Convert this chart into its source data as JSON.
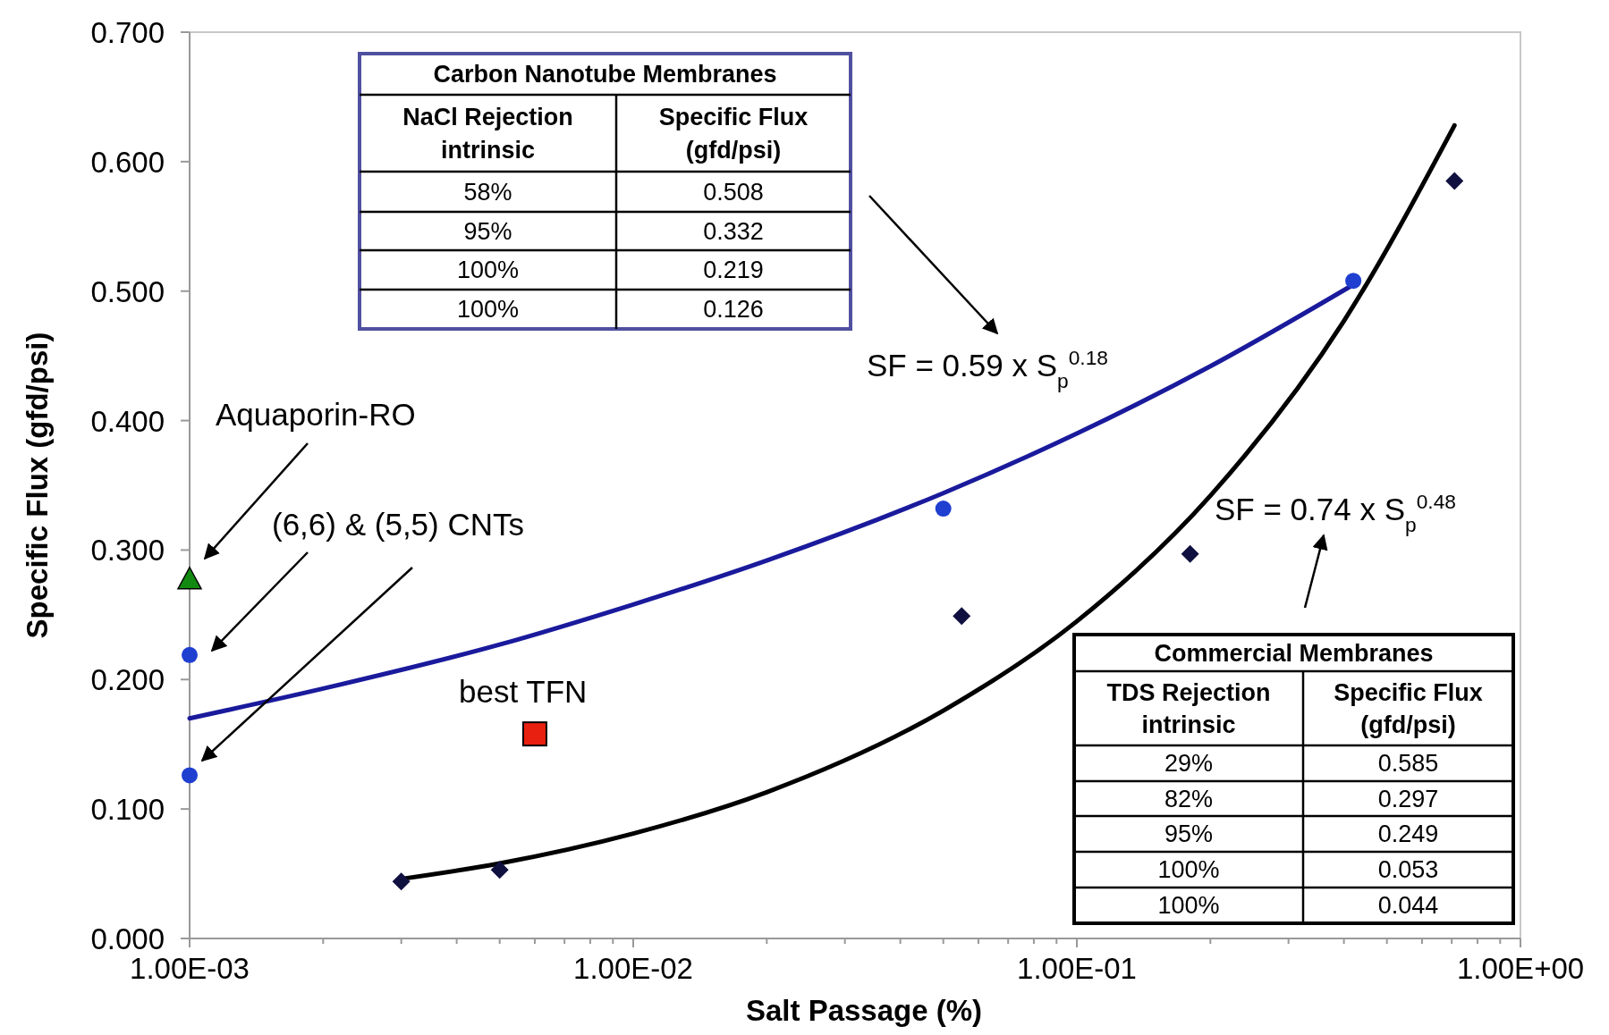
{
  "chart_data": {
    "type": "scatter",
    "xlabel": "Salt Passage (%)",
    "ylabel": "Specific Flux (gfd/psi)",
    "log": "x",
    "grid": false,
    "xlim": [
      0.001,
      1
    ],
    "ylim": [
      0,
      0.7
    ],
    "xticks": [
      {
        "value": 0.001,
        "label": "1.00E-03"
      },
      {
        "value": 0.002,
        "label": null
      },
      {
        "value": 0.003,
        "label": null
      },
      {
        "value": 0.004,
        "label": null
      },
      {
        "value": 0.005,
        "label": null
      },
      {
        "value": 0.006,
        "label": null
      },
      {
        "value": 0.007,
        "label": null
      },
      {
        "value": 0.008,
        "label": null
      },
      {
        "value": 0.009,
        "label": null
      },
      {
        "value": 0.01,
        "label": "1.00E-02"
      },
      {
        "value": 0.02,
        "label": null
      },
      {
        "value": 0.03,
        "label": null
      },
      {
        "value": 0.04,
        "label": null
      },
      {
        "value": 0.05,
        "label": null
      },
      {
        "value": 0.06,
        "label": null
      },
      {
        "value": 0.07,
        "label": null
      },
      {
        "value": 0.08,
        "label": null
      },
      {
        "value": 0.09,
        "label": null
      },
      {
        "value": 0.1,
        "label": "1.00E-01"
      },
      {
        "value": 0.2,
        "label": null
      },
      {
        "value": 0.3,
        "label": null
      },
      {
        "value": 0.4,
        "label": null
      },
      {
        "value": 0.5,
        "label": null
      },
      {
        "value": 0.6,
        "label": null
      },
      {
        "value": 0.7,
        "label": null
      },
      {
        "value": 0.8,
        "label": null
      },
      {
        "value": 0.9,
        "label": null
      },
      {
        "value": 1,
        "label": "1.00E+00"
      }
    ],
    "yticks": [
      {
        "value": 0,
        "label": "0.000"
      },
      {
        "value": 0.1,
        "label": "0.100"
      },
      {
        "value": 0.2,
        "label": "0.200"
      },
      {
        "value": 0.3,
        "label": "0.300"
      },
      {
        "value": 0.4,
        "label": "0.400"
      },
      {
        "value": 0.5,
        "label": "0.500"
      },
      {
        "value": 0.6,
        "label": "0.600"
      },
      {
        "value": 0.7,
        "label": "0.700"
      }
    ],
    "series": [
      {
        "type": "line",
        "color": "#1a1a9c",
        "line_style": "solid",
        "marker": "none",
        "x": [
          0.001,
          0.002,
          0.005,
          0.01,
          0.02,
          0.05,
          0.1,
          0.2,
          0.42
        ],
        "values": [
          0.17,
          0.193,
          0.227,
          0.258,
          0.292,
          0.344,
          0.39,
          0.442,
          0.505
        ]
      },
      {
        "type": "line",
        "color": "#000000",
        "line_style": "solid",
        "marker": "none",
        "x": [
          0.003,
          0.005,
          0.01,
          0.02,
          0.05,
          0.1,
          0.2,
          0.4,
          0.71
        ],
        "values": [
          0.046,
          0.058,
          0.081,
          0.113,
          0.176,
          0.245,
          0.342,
          0.477,
          0.628
        ]
      },
      {
        "color": "#1f3fd0",
        "marker": "circle",
        "x": [
          0.001,
          0.001,
          0.05,
          0.42
        ],
        "values": [
          0.219,
          0.126,
          0.332,
          0.508
        ]
      },
      {
        "color": "#128a12",
        "marker": "triangle",
        "x": [
          0.001
        ],
        "values": [
          0.277
        ]
      },
      {
        "color": "#e82010",
        "marker": "square",
        "x": [
          0.006
        ],
        "values": [
          0.158
        ]
      },
      {
        "color": "#101040",
        "marker": "diamond",
        "x": [
          0.003,
          0.005,
          0.055,
          0.18,
          0.71
        ],
        "values": [
          0.044,
          0.053,
          0.249,
          0.297,
          0.585
        ]
      }
    ],
    "annotations": [
      "Aquaporin-RO",
      "(6,6) & (5,5) CNTs",
      "best TFN",
      "SF = 0.59 x S$_{p}$$^{0.18}$",
      "SF = 0.74 x S$_{p}$$^{0.48}$",
      "Carbon Nanotube Membranes",
      "NaCl Rejection\nintrinsic",
      "Specific Flux\n(gfd/psi)",
      "58%",
      "0.508",
      "95%",
      "0.332",
      "100%",
      "0.219",
      "100%",
      "0.126",
      "Commercial Membranes",
      "TDS Rejection\nintrinsic",
      "Specific Flux\n(gfd/psi)",
      "29%",
      "0.585",
      "82%",
      "0.297",
      "95%",
      "0.249",
      "100%",
      "0.053",
      "100%",
      "0.044"
    ]
  }
}
